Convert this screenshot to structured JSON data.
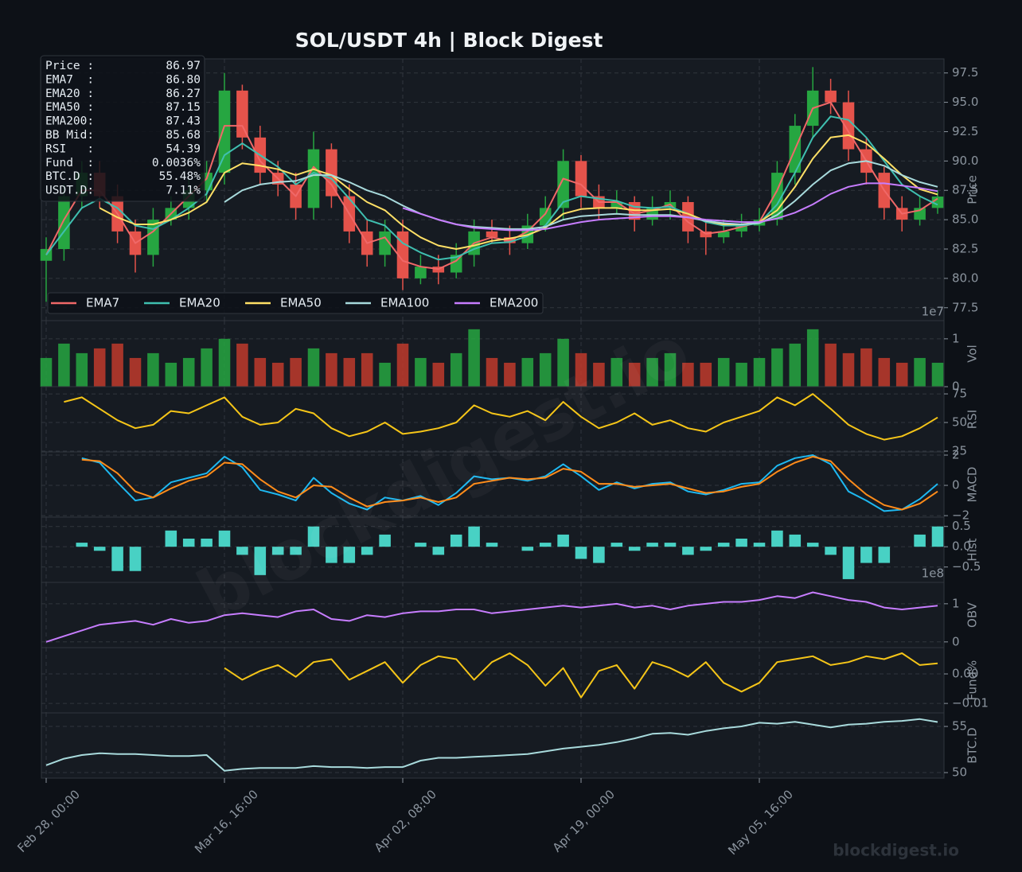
{
  "title": "SOL/USDT  4h  |  Block Digest",
  "watermark": "blockdigest.io",
  "footer": "blockdigest.io",
  "info_box": [
    {
      "label": "Price :",
      "value": "86.97"
    },
    {
      "label": "EMA7  :",
      "value": "86.80"
    },
    {
      "label": "EMA20 :",
      "value": "86.27"
    },
    {
      "label": "EMA50 :",
      "value": "87.15"
    },
    {
      "label": "EMA200:",
      "value": "87.43"
    },
    {
      "label": "BB Mid:",
      "value": "85.68"
    },
    {
      "label": "RSI   :",
      "value": "54.39"
    },
    {
      "label": "Fund  :",
      "value": "0.0036%"
    },
    {
      "label": "BTC.D :",
      "value": "55.48%"
    },
    {
      "label": "USDT.D:",
      "value": "7.11%"
    }
  ],
  "chart_data": [
    {
      "type": "candlestick",
      "ylabel": "Price",
      "ylim": [
        76.4,
        98.7
      ],
      "yticks": [
        77.5,
        {
          "value": 80,
          "label": "80.0"
        },
        82.5,
        {
          "value": 85,
          "label": "85.0"
        },
        87.5,
        {
          "value": 90,
          "label": "90.0"
        },
        92.5,
        {
          "value": 95,
          "label": "95.0"
        },
        97.5
      ],
      "grid": true,
      "legend": "lower left",
      "up_color": "#26a641",
      "down_color": "#e5534b",
      "open": [
        81.5,
        82.5,
        87,
        89,
        87,
        84,
        82,
        85,
        86,
        87.5,
        89,
        96,
        92,
        89,
        88,
        86,
        91,
        87,
        84,
        82,
        84,
        80,
        81,
        80.5,
        82,
        84,
        83.5,
        83,
        84.5,
        86,
        90,
        87,
        86,
        86.5,
        85,
        86,
        86.5,
        84,
        83.5,
        84,
        84.5,
        85,
        89,
        93,
        96,
        95,
        91,
        89,
        86,
        85,
        86
      ],
      "high": [
        83.5,
        88,
        90,
        90,
        88,
        85,
        86,
        87,
        88.5,
        90,
        97.5,
        96.5,
        93,
        90,
        89,
        92.5,
        91.5,
        88,
        85,
        85,
        85,
        82,
        82,
        83,
        85,
        85,
        84.5,
        85.5,
        87,
        91,
        90.5,
        88,
        87.5,
        87,
        87,
        87.5,
        87,
        85,
        85,
        85.5,
        86,
        90,
        94,
        98,
        97,
        96,
        92,
        89.5,
        87,
        87,
        87.5
      ],
      "low": [
        78,
        81.5,
        86,
        86,
        83,
        80.5,
        81,
        84.5,
        85,
        86.5,
        88,
        91,
        88,
        87,
        85,
        85,
        86,
        83,
        81,
        81,
        79,
        79.5,
        79.5,
        80,
        81,
        83,
        82,
        82.5,
        84,
        85,
        86,
        85,
        85.5,
        84,
        84.5,
        85,
        83,
        82,
        83,
        83.5,
        84,
        84.5,
        88,
        92,
        94,
        90,
        88,
        85,
        84,
        84.5,
        85.5
      ],
      "close": [
        82.5,
        87,
        89,
        87,
        84,
        82,
        85,
        86,
        87.5,
        89,
        96,
        92,
        89,
        88,
        86,
        91,
        87,
        84,
        82,
        84,
        80,
        81,
        80.5,
        82,
        84,
        83.5,
        83,
        84.5,
        86,
        90,
        87,
        86,
        86.5,
        85,
        86,
        86.5,
        84,
        83.5,
        84,
        84.5,
        85,
        89,
        93,
        96,
        95,
        91,
        89,
        86,
        85,
        86,
        86.97
      ],
      "series": [
        {
          "name": "EMA7",
          "color": "#f06868",
          "values": [
            82,
            85,
            87.5,
            87.5,
            85.5,
            83,
            84,
            85.5,
            87,
            88.5,
            93,
            93,
            90,
            88.5,
            87,
            89.5,
            88,
            85.5,
            83,
            83.5,
            81.5,
            81,
            80.8,
            81.5,
            83,
            83.5,
            83.2,
            84,
            85.5,
            88.5,
            88,
            86.5,
            86.5,
            85.5,
            85.8,
            86.3,
            84.8,
            83.8,
            84,
            84.4,
            84.8,
            87.5,
            91,
            94.5,
            95,
            92.5,
            90,
            87.5,
            85.5,
            85.8,
            86.8
          ]
        },
        {
          "name": "EMA20",
          "color": "#3fbfb0",
          "values": [
            82,
            84,
            86,
            86.8,
            86,
            84.5,
            84.2,
            85,
            86,
            87.2,
            90.5,
            91.5,
            90.5,
            89.5,
            88,
            89,
            88.5,
            86.8,
            85,
            84.5,
            83,
            82.2,
            81.6,
            81.8,
            82.5,
            83,
            83.1,
            83.6,
            84.5,
            86.5,
            87,
            86.8,
            86.6,
            86.1,
            86,
            86.1,
            85.5,
            84.8,
            84.5,
            84.5,
            84.7,
            86.3,
            89,
            92,
            93.8,
            93.5,
            92,
            90,
            88,
            87,
            86.27
          ]
        },
        {
          "name": "EMA50",
          "color": "#ffe066",
          "values": [
            null,
            null,
            null,
            86,
            85.2,
            84.6,
            84.6,
            85,
            85.6,
            86.5,
            89,
            89.8,
            89.6,
            89.3,
            88.8,
            89.3,
            88.8,
            87.6,
            86.5,
            85.8,
            84.5,
            83.5,
            82.8,
            82.5,
            82.8,
            83.2,
            83.4,
            83.7,
            84.3,
            85.5,
            85.9,
            86,
            86,
            85.8,
            85.8,
            85.9,
            85.5,
            84.9,
            84.6,
            84.6,
            84.8,
            85.8,
            87.8,
            90.2,
            92,
            92.2,
            91.5,
            90.2,
            88.8,
            87.6,
            87.15
          ]
        },
        {
          "name": "EMA100",
          "color": "#a8dadc",
          "values": [
            null,
            null,
            null,
            null,
            null,
            null,
            null,
            null,
            null,
            null,
            86.5,
            87.5,
            88,
            88.2,
            88.3,
            88.8,
            88.8,
            88.2,
            87.5,
            87,
            86.2,
            85.5,
            85,
            84.6,
            84.4,
            84.3,
            84.2,
            84.2,
            84.4,
            85,
            85.3,
            85.4,
            85.5,
            85.4,
            85.4,
            85.4,
            85.2,
            84.9,
            84.7,
            84.6,
            84.7,
            85.4,
            86.6,
            88,
            89.2,
            89.8,
            90,
            89.6,
            88.8,
            88.2,
            87.8
          ]
        },
        {
          "name": "EMA200",
          "color": "#c77dff",
          "values": [
            null,
            null,
            null,
            null,
            null,
            null,
            null,
            null,
            null,
            null,
            null,
            null,
            null,
            null,
            null,
            null,
            null,
            null,
            null,
            null,
            86,
            85.5,
            85,
            84.6,
            84.3,
            84.2,
            84.1,
            84.1,
            84.2,
            84.5,
            84.8,
            85,
            85.1,
            85.2,
            85.3,
            85.3,
            85.2,
            85,
            84.9,
            84.8,
            84.8,
            85.1,
            85.6,
            86.3,
            87.2,
            87.8,
            88.1,
            88.1,
            87.9,
            87.7,
            87.43
          ]
        }
      ]
    },
    {
      "type": "volume",
      "ylabel": "Vol",
      "offset_label": "1e7",
      "ylim": [
        0,
        1.38
      ],
      "yticks": [
        0,
        1
      ],
      "grid": true,
      "up_color": "#26a641",
      "down_color": "#c0392b",
      "values": [
        0.6,
        0.9,
        0.7,
        0.8,
        0.9,
        0.6,
        0.7,
        0.5,
        0.6,
        0.8,
        1.0,
        0.9,
        0.6,
        0.5,
        0.6,
        0.8,
        0.7,
        0.6,
        0.7,
        0.5,
        0.9,
        0.6,
        0.5,
        0.7,
        1.2,
        0.6,
        0.5,
        0.6,
        0.7,
        1.0,
        0.7,
        0.5,
        0.6,
        0.5,
        0.6,
        0.7,
        0.5,
        0.5,
        0.6,
        0.5,
        0.6,
        0.8,
        0.9,
        1.2,
        0.9,
        0.7,
        0.8,
        0.6,
        0.5,
        0.6,
        0.5
      ]
    },
    {
      "type": "line",
      "ylabel": "RSI",
      "ylim": [
        24.3,
        81.3
      ],
      "yticks": [
        25,
        50,
        75
      ],
      "grid": true,
      "series": [
        {
          "color": "#f5c518",
          "values": [
            null,
            68,
            72,
            62,
            52,
            45,
            48,
            60,
            58,
            65,
            72,
            55,
            48,
            50,
            62,
            58,
            45,
            38,
            42,
            50,
            40,
            42,
            45,
            50,
            65,
            58,
            55,
            60,
            52,
            68,
            55,
            45,
            50,
            58,
            48,
            52,
            45,
            42,
            50,
            55,
            60,
            72,
            65,
            75,
            62,
            48,
            40,
            35,
            38,
            45,
            54.39
          ]
        }
      ]
    },
    {
      "type": "line",
      "ylabel": "MACD",
      "ylim": [
        -2.1,
        2.21
      ],
      "yticks": [
        {
          "value": -2,
          "label": "−2"
        },
        0,
        2
      ],
      "grid": true,
      "series": [
        {
          "color": "#1eb8f0",
          "values": [
            null,
            null,
            1.8,
            1.5,
            0.2,
            -1.0,
            -0.8,
            0.2,
            0.5,
            0.8,
            1.9,
            1.2,
            -0.3,
            -0.6,
            -1.0,
            0.5,
            -0.5,
            -1.2,
            -1.6,
            -0.8,
            -1.0,
            -0.7,
            -1.3,
            -0.5,
            0.6,
            0.4,
            0.5,
            0.3,
            0.6,
            1.4,
            0.6,
            -0.3,
            0.2,
            -0.2,
            0.1,
            0.2,
            -0.4,
            -0.6,
            -0.3,
            0.1,
            0.2,
            1.3,
            1.8,
            2.0,
            1.4,
            -0.4,
            -1.0,
            -1.7,
            -1.6,
            -0.9,
            0.1
          ]
        },
        {
          "color": "#ff8c1a",
          "values": [
            null,
            null,
            1.7,
            1.6,
            0.8,
            -0.4,
            -0.8,
            -0.2,
            0.3,
            0.6,
            1.5,
            1.4,
            0.4,
            -0.4,
            -0.8,
            0.0,
            -0.1,
            -0.8,
            -1.4,
            -1.1,
            -1.0,
            -0.8,
            -1.1,
            -0.8,
            0.1,
            0.3,
            0.5,
            0.4,
            0.5,
            1.1,
            0.9,
            0.1,
            0.1,
            -0.1,
            0.0,
            0.1,
            -0.2,
            -0.5,
            -0.4,
            -0.1,
            0.1,
            0.9,
            1.5,
            1.9,
            1.6,
            0.4,
            -0.6,
            -1.3,
            -1.6,
            -1.2,
            -0.4
          ]
        }
      ]
    },
    {
      "type": "bar",
      "ylabel": "Hist",
      "ylim": [
        -0.88,
        0.73
      ],
      "yticks": [
        {
          "value": -0.5,
          "label": "−0.5"
        },
        {
          "value": 0,
          "label": "0.0"
        },
        0.5
      ],
      "grid": true,
      "color": "#48d1c4",
      "values": [
        null,
        null,
        0.1,
        -0.1,
        -0.6,
        -0.6,
        0,
        0.4,
        0.2,
        0.2,
        0.4,
        -0.2,
        -0.7,
        -0.2,
        -0.2,
        0.5,
        -0.4,
        -0.4,
        -0.2,
        0.3,
        0,
        0.1,
        -0.2,
        0.3,
        0.5,
        0.1,
        0,
        -0.1,
        0.1,
        0.3,
        -0.3,
        -0.4,
        0.1,
        -0.1,
        0.1,
        0.1,
        -0.2,
        -0.1,
        0.1,
        0.2,
        0.1,
        0.4,
        0.3,
        0.1,
        -0.2,
        -0.8,
        -0.4,
        -0.4,
        0,
        0.3,
        0.5
      ]
    },
    {
      "type": "line",
      "ylabel": "OBV",
      "offset_label": "1e8",
      "ylim": [
        -0.15,
        1.56
      ],
      "yticks": [
        0,
        1
      ],
      "grid": true,
      "series": [
        {
          "color": "#c77dff",
          "values": [
            0.0,
            0.15,
            0.3,
            0.45,
            0.5,
            0.55,
            0.45,
            0.6,
            0.5,
            0.55,
            0.7,
            0.75,
            0.7,
            0.65,
            0.8,
            0.85,
            0.6,
            0.55,
            0.7,
            0.65,
            0.75,
            0.8,
            0.8,
            0.85,
            0.85,
            0.75,
            0.8,
            0.85,
            0.9,
            0.95,
            0.9,
            0.95,
            1.0,
            0.9,
            0.95,
            0.85,
            0.95,
            1.0,
            1.05,
            1.05,
            1.1,
            1.2,
            1.15,
            1.3,
            1.2,
            1.1,
            1.05,
            0.9,
            0.85,
            0.9,
            0.95
          ]
        }
      ]
    },
    {
      "type": "line",
      "ylabel": "Fund%",
      "ylim": [
        -0.0132,
        0.0089
      ],
      "yticks": [
        {
          "value": -0.01,
          "label": "−0.01"
        },
        {
          "value": 0,
          "label": "0.00"
        }
      ],
      "grid": true,
      "series": [
        {
          "color": "#f5c518",
          "values": [
            null,
            null,
            null,
            null,
            null,
            null,
            null,
            null,
            null,
            null,
            0.002,
            -0.002,
            0.001,
            0.003,
            -0.001,
            0.004,
            0.005,
            -0.002,
            0.001,
            0.004,
            -0.003,
            0.003,
            0.006,
            0.005,
            -0.002,
            0.004,
            0.007,
            0.003,
            -0.004,
            0.002,
            -0.008,
            0.001,
            0.003,
            -0.005,
            0.004,
            0.002,
            -0.001,
            0.004,
            -0.003,
            -0.006,
            -0.003,
            0.004,
            0.005,
            0.006,
            0.003,
            0.004,
            0.006,
            0.005,
            0.007,
            0.003,
            0.0036
          ]
        }
      ]
    },
    {
      "type": "line",
      "ylabel": "BTC.D",
      "ylim": [
        49.4,
        56.47
      ],
      "yticks": [
        50,
        55
      ],
      "grid": true,
      "categories": [
        "Feb 28, 00:00",
        null,
        null,
        null,
        null,
        null,
        null,
        null,
        null,
        null,
        "Mar 16, 16:00",
        null,
        null,
        null,
        null,
        null,
        null,
        null,
        null,
        null,
        "Apr 02, 08:00",
        null,
        null,
        null,
        null,
        null,
        null,
        null,
        null,
        null,
        "Apr 19, 00:00",
        null,
        null,
        null,
        null,
        null,
        null,
        null,
        null,
        null,
        "May 05, 16:00",
        null,
        null,
        null,
        null,
        null,
        null,
        null,
        null,
        null,
        null
      ],
      "series": [
        {
          "color": "#a8dadc",
          "values": [
            50.8,
            51.5,
            51.9,
            52.1,
            52.0,
            52.0,
            51.9,
            51.8,
            51.8,
            51.9,
            50.2,
            50.4,
            50.5,
            50.5,
            50.5,
            50.7,
            50.6,
            50.6,
            50.5,
            50.6,
            50.6,
            51.3,
            51.6,
            51.6,
            51.7,
            51.8,
            51.9,
            52.0,
            52.3,
            52.6,
            52.8,
            53.0,
            53.3,
            53.7,
            54.2,
            54.3,
            54.1,
            54.5,
            54.8,
            55.0,
            55.4,
            55.3,
            55.5,
            55.2,
            54.9,
            55.2,
            55.3,
            55.5,
            55.6,
            55.8,
            55.48
          ]
        }
      ]
    }
  ]
}
